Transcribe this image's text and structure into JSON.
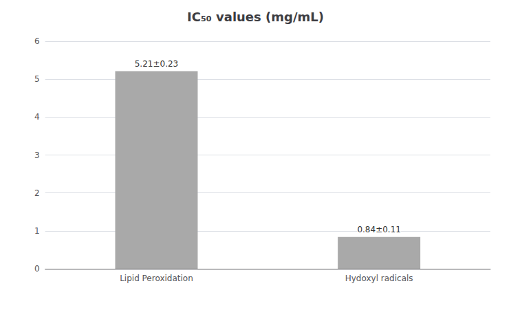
{
  "chart_data": {
    "type": "bar",
    "title": "IC₅₀ values (mg/mL)",
    "categories": [
      "Lipid Peroxidation",
      "Hydoxyl radicals"
    ],
    "values": [
      5.21,
      0.84
    ],
    "value_labels": [
      "5.21±0.23",
      "0.84±0.11"
    ],
    "data_labels": true,
    "color": "#a9a9a9",
    "ylim": [
      0,
      6
    ],
    "yticks": [
      0,
      1,
      2,
      3,
      4,
      5,
      6
    ],
    "grid": true
  }
}
